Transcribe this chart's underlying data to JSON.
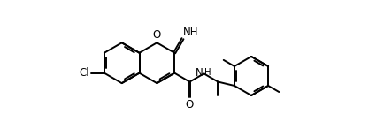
{
  "background_color": "#ffffff",
  "line_color": "#000000",
  "line_width": 1.4,
  "font_size": 8.5,
  "figsize": [
    4.34,
    1.38
  ],
  "dpi": 100,
  "xlim": [
    -1.6,
    5.2
  ],
  "ylim": [
    -1.5,
    1.6
  ]
}
